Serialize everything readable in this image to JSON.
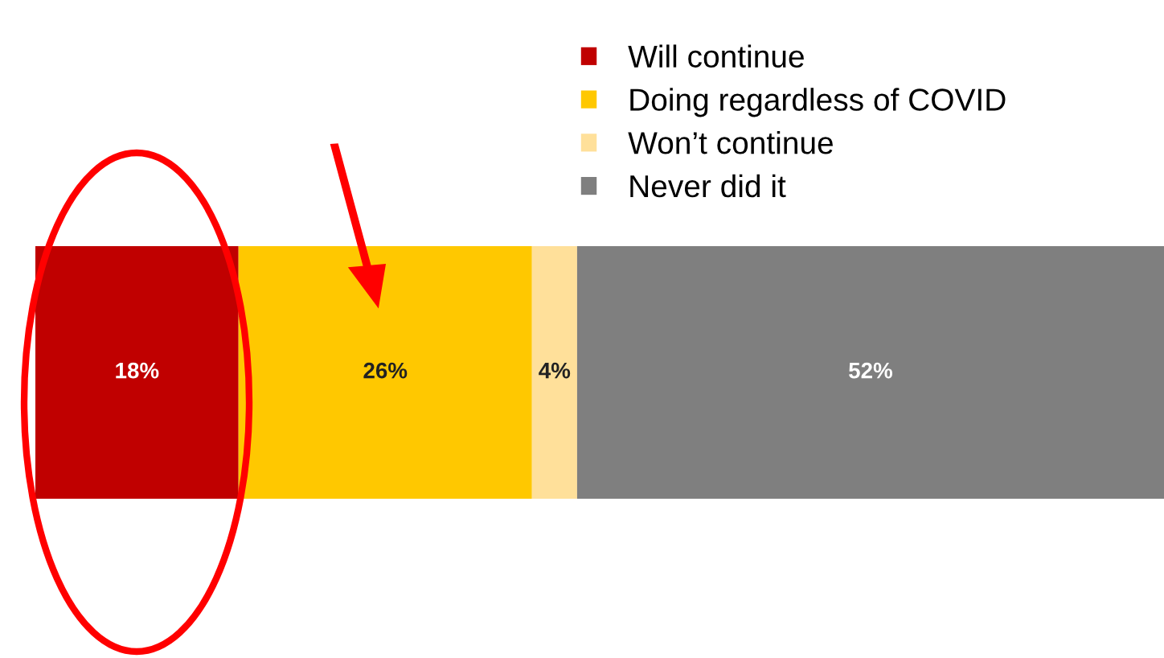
{
  "chart_data": {
    "type": "bar",
    "orientation": "horizontal",
    "stacked": true,
    "categories": [
      null
    ],
    "series": [
      {
        "name": "Will continue",
        "color": "#c00000",
        "values": [
          18
        ],
        "value_labels": [
          "18%"
        ]
      },
      {
        "name": "Doing regardless of COVID",
        "color": "#ffc800",
        "values": [
          26
        ],
        "value_labels": [
          "26%"
        ]
      },
      {
        "name": "Won’t continue",
        "color": "#ffe09a",
        "values": [
          4
        ],
        "value_labels": [
          "4%"
        ]
      },
      {
        "name": "Never did it",
        "color": "#7f7f7f",
        "values": [
          52
        ],
        "value_labels": [
          "52%"
        ]
      }
    ],
    "legend": "top right"
  }
}
